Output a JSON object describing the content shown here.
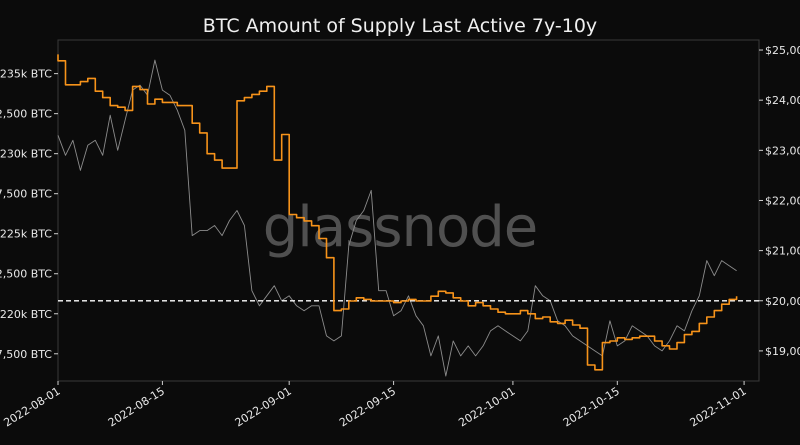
{
  "chart_data": {
    "type": "line",
    "title": "BTC Amount of Supply Last Active 7y-10y",
    "watermark": "glassnode",
    "xlabel": "",
    "ylabel": "",
    "x_range": [
      "2022-08-01",
      "2022-11-03"
    ],
    "x_ticks": [
      "2022-08-01",
      "2022-08-15",
      "2022-09-01",
      "2022-09-15",
      "2022-10-01",
      "2022-10-15",
      "2022-11-01"
    ],
    "y_left": {
      "range": [
        215800,
        237100
      ],
      "ticks": [
        217500,
        220000,
        222500,
        225000,
        227500,
        230000,
        232500,
        235000
      ],
      "tick_labels": [
        "7,500 BTC",
        "220k BTC",
        "2,500 BTC",
        "225k BTC",
        "7,500 BTC",
        "230k BTC",
        "2,500 BTC",
        "235k BTC"
      ]
    },
    "y_right": {
      "range": [
        18400,
        25200
      ],
      "ticks": [
        19000,
        20000,
        21000,
        22000,
        23000,
        24000,
        25000
      ],
      "tick_labels": [
        "$19,00",
        "$20,00",
        "$21,00",
        "$22,00",
        "$23,00",
        "$24,00",
        "$25,00"
      ]
    },
    "reference_line": {
      "axis": "right",
      "value": 20000,
      "style": "dashed",
      "color": "#ffffff"
    },
    "grid": false,
    "legend": "none",
    "series": [
      {
        "axis": "left",
        "color": "#f7931a",
        "style": "step",
        "points": [
          [
            "2022-08-01",
            236200
          ],
          [
            "2022-08-01",
            235800
          ],
          [
            "2022-08-02",
            234300
          ],
          [
            "2022-08-03",
            234300
          ],
          [
            "2022-08-04",
            234500
          ],
          [
            "2022-08-05",
            234700
          ],
          [
            "2022-08-06",
            233900
          ],
          [
            "2022-08-07",
            233500
          ],
          [
            "2022-08-08",
            233000
          ],
          [
            "2022-08-09",
            232900
          ],
          [
            "2022-08-10",
            232700
          ],
          [
            "2022-08-11",
            234200
          ],
          [
            "2022-08-12",
            234000
          ],
          [
            "2022-08-13",
            233100
          ],
          [
            "2022-08-14",
            233400
          ],
          [
            "2022-08-15",
            233200
          ],
          [
            "2022-08-16",
            233200
          ],
          [
            "2022-08-17",
            233000
          ],
          [
            "2022-08-18",
            233000
          ],
          [
            "2022-08-19",
            231900
          ],
          [
            "2022-08-20",
            231300
          ],
          [
            "2022-08-21",
            230000
          ],
          [
            "2022-08-22",
            229600
          ],
          [
            "2022-08-23",
            229100
          ],
          [
            "2022-08-24",
            229100
          ],
          [
            "2022-08-25",
            233300
          ],
          [
            "2022-08-26",
            233500
          ],
          [
            "2022-08-27",
            233700
          ],
          [
            "2022-08-28",
            233900
          ],
          [
            "2022-08-29",
            234200
          ],
          [
            "2022-08-30",
            229600
          ],
          [
            "2022-08-31",
            231200
          ],
          [
            "2022-09-01",
            226200
          ],
          [
            "2022-09-02",
            226000
          ],
          [
            "2022-09-03",
            225800
          ],
          [
            "2022-09-04",
            225500
          ],
          [
            "2022-09-05",
            224700
          ],
          [
            "2022-09-06",
            223500
          ],
          [
            "2022-09-07",
            221000
          ],
          [
            "2022-09-07",
            220200
          ],
          [
            "2022-09-08",
            220300
          ],
          [
            "2022-09-09",
            220800
          ],
          [
            "2022-09-10",
            221000
          ],
          [
            "2022-09-11",
            220900
          ],
          [
            "2022-09-12",
            220800
          ],
          [
            "2022-09-13",
            220800
          ],
          [
            "2022-09-14",
            220800
          ],
          [
            "2022-09-15",
            220700
          ],
          [
            "2022-09-16",
            220800
          ],
          [
            "2022-09-17",
            220900
          ],
          [
            "2022-09-18",
            220800
          ],
          [
            "2022-09-19",
            220800
          ],
          [
            "2022-09-20",
            221100
          ],
          [
            "2022-09-21",
            221400
          ],
          [
            "2022-09-22",
            221300
          ],
          [
            "2022-09-23",
            221000
          ],
          [
            "2022-09-24",
            220800
          ],
          [
            "2022-09-25",
            220500
          ],
          [
            "2022-09-26",
            220700
          ],
          [
            "2022-09-27",
            220500
          ],
          [
            "2022-09-28",
            220300
          ],
          [
            "2022-09-29",
            220100
          ],
          [
            "2022-09-30",
            220000
          ],
          [
            "2022-10-01",
            220000
          ],
          [
            "2022-10-02",
            220200
          ],
          [
            "2022-10-03",
            220000
          ],
          [
            "2022-10-04",
            219700
          ],
          [
            "2022-10-05",
            219800
          ],
          [
            "2022-10-06",
            219500
          ],
          [
            "2022-10-07",
            219400
          ],
          [
            "2022-10-08",
            219600
          ],
          [
            "2022-10-09",
            219300
          ],
          [
            "2022-10-10",
            219100
          ],
          [
            "2022-10-11",
            216800
          ],
          [
            "2022-10-12",
            216500
          ],
          [
            "2022-10-13",
            218200
          ],
          [
            "2022-10-14",
            218300
          ],
          [
            "2022-10-15",
            218500
          ],
          [
            "2022-10-16",
            218400
          ],
          [
            "2022-10-17",
            218500
          ],
          [
            "2022-10-18",
            218600
          ],
          [
            "2022-10-19",
            218600
          ],
          [
            "2022-10-20",
            218300
          ],
          [
            "2022-10-21",
            218000
          ],
          [
            "2022-10-22",
            217800
          ],
          [
            "2022-10-23",
            218200
          ],
          [
            "2022-10-24",
            218700
          ],
          [
            "2022-10-25",
            218900
          ],
          [
            "2022-10-26",
            219400
          ],
          [
            "2022-10-27",
            219800
          ],
          [
            "2022-10-28",
            220200
          ],
          [
            "2022-10-29",
            220600
          ],
          [
            "2022-10-30",
            220900
          ],
          [
            "2022-10-31",
            221100
          ]
        ]
      },
      {
        "axis": "right",
        "color": "#8c8c8c",
        "style": "line",
        "points": [
          [
            "2022-08-01",
            23300
          ],
          [
            "2022-08-02",
            22900
          ],
          [
            "2022-08-03",
            23200
          ],
          [
            "2022-08-04",
            22600
          ],
          [
            "2022-08-05",
            23100
          ],
          [
            "2022-08-06",
            23200
          ],
          [
            "2022-08-07",
            22900
          ],
          [
            "2022-08-08",
            23700
          ],
          [
            "2022-08-09",
            23000
          ],
          [
            "2022-08-10",
            23600
          ],
          [
            "2022-08-11",
            24200
          ],
          [
            "2022-08-12",
            24300
          ],
          [
            "2022-08-13",
            24100
          ],
          [
            "2022-08-14",
            24800
          ],
          [
            "2022-08-15",
            24200
          ],
          [
            "2022-08-16",
            24100
          ],
          [
            "2022-08-17",
            23800
          ],
          [
            "2022-08-18",
            23400
          ],
          [
            "2022-08-19",
            21300
          ],
          [
            "2022-08-20",
            21400
          ],
          [
            "2022-08-21",
            21400
          ],
          [
            "2022-08-22",
            21500
          ],
          [
            "2022-08-23",
            21300
          ],
          [
            "2022-08-24",
            21600
          ],
          [
            "2022-08-25",
            21800
          ],
          [
            "2022-08-26",
            21500
          ],
          [
            "2022-08-27",
            20200
          ],
          [
            "2022-08-28",
            19900
          ],
          [
            "2022-08-29",
            20100
          ],
          [
            "2022-08-30",
            20300
          ],
          [
            "2022-08-31",
            20000
          ],
          [
            "2022-09-01",
            20100
          ],
          [
            "2022-09-02",
            19900
          ],
          [
            "2022-09-03",
            19800
          ],
          [
            "2022-09-04",
            19900
          ],
          [
            "2022-09-05",
            19900
          ],
          [
            "2022-09-06",
            19300
          ],
          [
            "2022-09-07",
            19200
          ],
          [
            "2022-09-08",
            19300
          ],
          [
            "2022-09-09",
            21100
          ],
          [
            "2022-09-10",
            21600
          ],
          [
            "2022-09-11",
            21800
          ],
          [
            "2022-09-12",
            22200
          ],
          [
            "2022-09-13",
            20200
          ],
          [
            "2022-09-14",
            20200
          ],
          [
            "2022-09-15",
            19700
          ],
          [
            "2022-09-16",
            19800
          ],
          [
            "2022-09-17",
            20100
          ],
          [
            "2022-09-18",
            19700
          ],
          [
            "2022-09-19",
            19500
          ],
          [
            "2022-09-20",
            18900
          ],
          [
            "2022-09-21",
            19300
          ],
          [
            "2022-09-22",
            18500
          ],
          [
            "2022-09-23",
            19200
          ],
          [
            "2022-09-24",
            18900
          ],
          [
            "2022-09-25",
            19100
          ],
          [
            "2022-09-26",
            18900
          ],
          [
            "2022-09-27",
            19100
          ],
          [
            "2022-09-28",
            19400
          ],
          [
            "2022-09-29",
            19500
          ],
          [
            "2022-09-30",
            19400
          ],
          [
            "2022-10-01",
            19300
          ],
          [
            "2022-10-02",
            19200
          ],
          [
            "2022-10-03",
            19400
          ],
          [
            "2022-10-04",
            20300
          ],
          [
            "2022-10-05",
            20100
          ],
          [
            "2022-10-06",
            20000
          ],
          [
            "2022-10-07",
            19600
          ],
          [
            "2022-10-08",
            19500
          ],
          [
            "2022-10-09",
            19300
          ],
          [
            "2022-10-10",
            19200
          ],
          [
            "2022-10-11",
            19100
          ],
          [
            "2022-10-12",
            19000
          ],
          [
            "2022-10-13",
            18900
          ],
          [
            "2022-10-14",
            19600
          ],
          [
            "2022-10-15",
            19100
          ],
          [
            "2022-10-16",
            19200
          ],
          [
            "2022-10-17",
            19500
          ],
          [
            "2022-10-18",
            19400
          ],
          [
            "2022-10-19",
            19300
          ],
          [
            "2022-10-20",
            19100
          ],
          [
            "2022-10-21",
            19000
          ],
          [
            "2022-10-22",
            19200
          ],
          [
            "2022-10-23",
            19500
          ],
          [
            "2022-10-24",
            19400
          ],
          [
            "2022-10-25",
            19800
          ],
          [
            "2022-10-26",
            20100
          ],
          [
            "2022-10-27",
            20800
          ],
          [
            "2022-10-28",
            20500
          ],
          [
            "2022-10-29",
            20800
          ],
          [
            "2022-10-30",
            20700
          ],
          [
            "2022-10-31",
            20600
          ]
        ]
      }
    ]
  }
}
